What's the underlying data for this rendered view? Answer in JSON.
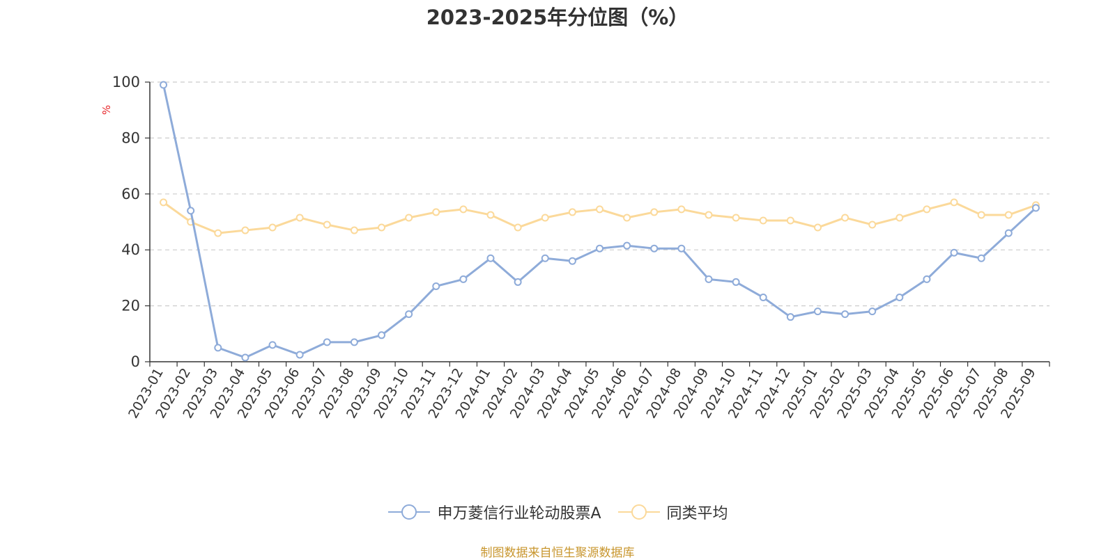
{
  "chart_data": {
    "type": "line",
    "title": "2023-2025年分位图（%）",
    "ylabel": "%",
    "ylim": [
      0,
      100
    ],
    "yticks": [
      0,
      20,
      40,
      60,
      80,
      100
    ],
    "grid": true,
    "legend_position": "bottom-center",
    "categories": [
      "2023-01",
      "2023-02",
      "2023-03",
      "2023-04",
      "2023-05",
      "2023-06",
      "2023-07",
      "2023-08",
      "2023-09",
      "2023-10",
      "2023-11",
      "2023-12",
      "2024-01",
      "2024-02",
      "2024-03",
      "2024-04",
      "2024-05",
      "2024-06",
      "2024-07",
      "2024-08",
      "2024-09",
      "2024-10",
      "2024-11",
      "2024-12",
      "2025-01",
      "2025-02",
      "2025-03",
      "2025-04",
      "2025-05",
      "2025-06",
      "2025-07",
      "2025-08",
      "2025-09"
    ],
    "series": [
      {
        "name": "申万菱信行业轮动股票A",
        "color": "#8eabd9",
        "values": [
          99,
          54,
          5,
          1.5,
          6,
          2.5,
          7,
          7,
          9.5,
          17,
          27,
          29.5,
          37,
          28.5,
          37,
          36,
          40.5,
          41.5,
          40.5,
          40.5,
          29.5,
          28.5,
          23,
          16,
          18,
          17,
          18,
          23,
          29.5,
          39,
          37,
          46,
          55
        ]
      },
      {
        "name": "同类平均",
        "color": "#fbd99a",
        "values": [
          57,
          50,
          46,
          47,
          48,
          51.5,
          49,
          47,
          48,
          51.5,
          53.5,
          54.5,
          52.5,
          48,
          51.5,
          53.5,
          54.5,
          51.5,
          53.5,
          54.5,
          52.5,
          51.5,
          50.5,
          50.5,
          48,
          51.5,
          49,
          51.5,
          54.5,
          57,
          52.5,
          52.5,
          56
        ]
      }
    ]
  },
  "source": "制图数据来自恒生聚源数据库"
}
